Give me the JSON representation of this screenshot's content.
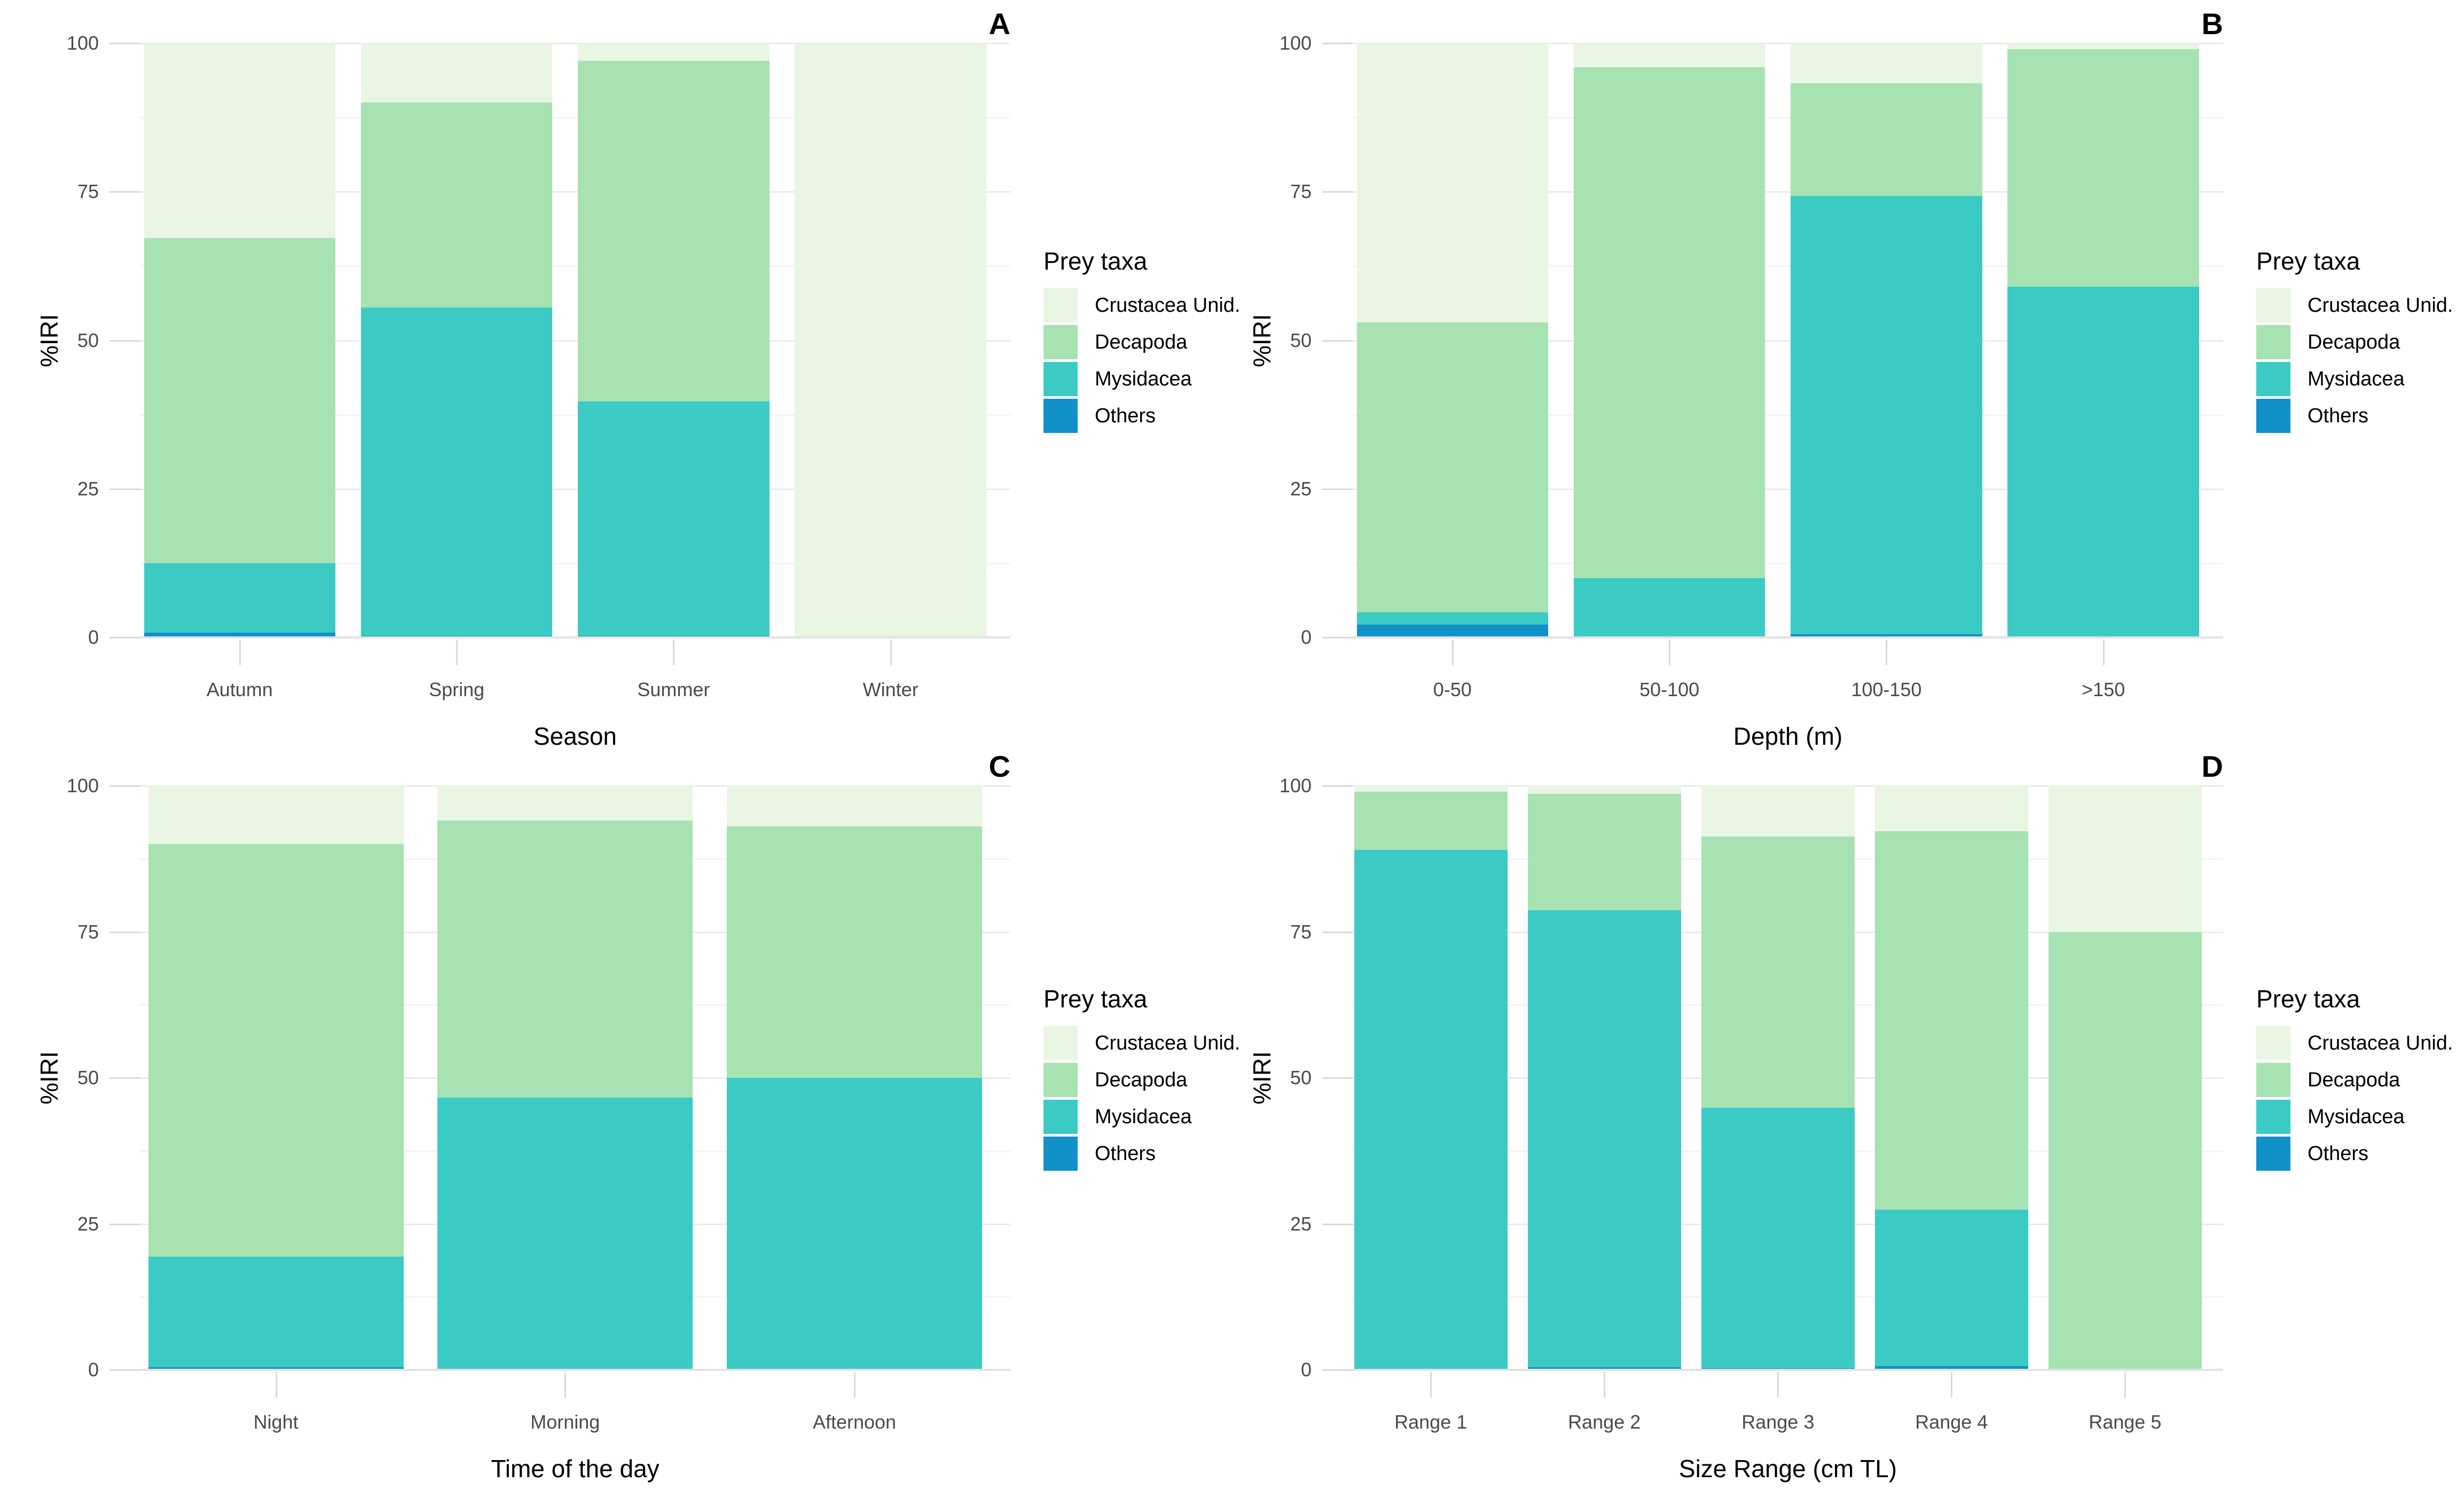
{
  "figure": {
    "background": "#FFFFFF",
    "y_axis": {
      "label": "%IRI",
      "ticks": [
        "0",
        "25",
        "50",
        "75",
        "100"
      ],
      "tick_values": [
        0,
        25,
        50,
        75,
        100
      ],
      "minor_tick_values": [
        12.5,
        37.5,
        62.5,
        87.5
      ],
      "ylim": [
        0,
        100
      ]
    },
    "legend": {
      "title": "Prey taxa",
      "position": "right-of-each-panel",
      "items": [
        {
          "label": "Crustacea Unid.",
          "color": "#E8F6E3"
        },
        {
          "label": "Decapoda",
          "color": "#A7E2B2"
        },
        {
          "label": "Mysidacea",
          "color": "#3BCBC4"
        },
        {
          "label": "Others",
          "color": "#1191C8"
        }
      ]
    },
    "colors": {
      "crustacea_unid": "#E8F6E3",
      "decapoda": "#A7E2B2",
      "mysidacea": "#3BCBC4",
      "others": "#1191C8",
      "grid_major": "#EBEBEB",
      "grid_minor": "#F4F4F4",
      "axis_line": "#E2E2E2",
      "tick_mark": "#D9D9D9",
      "tick_text": "#4A4A4A"
    }
  },
  "chart_data": [
    {
      "type": "bar",
      "stacked": true,
      "panel_letter": "A",
      "xlabel": "Season",
      "ylabel": "%IRI",
      "ylim": [
        0,
        100
      ],
      "yticks": [
        0,
        25,
        50,
        75,
        100
      ],
      "grid": "major+minor stubs",
      "categories": [
        "Autumn",
        "Spring",
        "Summer",
        "Winter"
      ],
      "stack_order": "bottom_to_top",
      "series": [
        {
          "name": "Others",
          "color": "#1191C8",
          "values": [
            0.8,
            0.3,
            0.3,
            0
          ]
        },
        {
          "name": "Mysidacea",
          "color": "#3BCBC4",
          "values": [
            11.7,
            55.2,
            39.4,
            0
          ]
        },
        {
          "name": "Decapoda",
          "color": "#A7E2B2",
          "values": [
            54.7,
            34.5,
            57.3,
            0
          ]
        },
        {
          "name": "Crustacea Unid.",
          "color": "#E8F6E3",
          "values": [
            32.8,
            10.0,
            3.0,
            100
          ]
        }
      ],
      "legend": {
        "title": "Prey taxa",
        "position": "right",
        "items_top_to_bottom": [
          "Crustacea Unid.",
          "Decapoda",
          "Mysidacea",
          "Others"
        ]
      }
    },
    {
      "type": "bar",
      "stacked": true,
      "panel_letter": "B",
      "xlabel": "Depth (m)",
      "ylabel": "%IRI",
      "ylim": [
        0,
        100
      ],
      "yticks": [
        0,
        25,
        50,
        75,
        100
      ],
      "grid": "major+minor stubs",
      "categories": [
        "0-50",
        "50-100",
        "100-150",
        ">150"
      ],
      "stack_order": "bottom_to_top",
      "series": [
        {
          "name": "Others",
          "color": "#1191C8",
          "values": [
            2.2,
            0,
            0.5,
            0
          ]
        },
        {
          "name": "Mysidacea",
          "color": "#3BCBC4",
          "values": [
            2.0,
            10.0,
            73.8,
            59.0
          ]
        },
        {
          "name": "Decapoda",
          "color": "#A7E2B2",
          "values": [
            48.8,
            86.0,
            19.0,
            40.0
          ]
        },
        {
          "name": "Crustacea Unid.",
          "color": "#E8F6E3",
          "values": [
            47.0,
            4.0,
            6.7,
            1.0
          ]
        }
      ],
      "legend": {
        "title": "Prey taxa",
        "position": "right",
        "items_top_to_bottom": [
          "Crustacea Unid.",
          "Decapoda",
          "Mysidacea",
          "Others"
        ]
      }
    },
    {
      "type": "bar",
      "stacked": true,
      "panel_letter": "C",
      "xlabel": "Time of the day",
      "ylabel": "%IRI",
      "ylim": [
        0,
        100
      ],
      "yticks": [
        0,
        25,
        50,
        75,
        100
      ],
      "grid": "major+minor stubs",
      "categories": [
        "Night",
        "Morning",
        "Afternoon"
      ],
      "stack_order": "bottom_to_top",
      "series": [
        {
          "name": "Others",
          "color": "#1191C8",
          "values": [
            0.5,
            0.2,
            0.2
          ]
        },
        {
          "name": "Mysidacea",
          "color": "#3BCBC4",
          "values": [
            18.9,
            46.4,
            49.8
          ]
        },
        {
          "name": "Decapoda",
          "color": "#A7E2B2",
          "values": [
            70.6,
            47.5,
            43.1
          ]
        },
        {
          "name": "Crustacea Unid.",
          "color": "#E8F6E3",
          "values": [
            10.0,
            5.9,
            6.9
          ]
        }
      ],
      "legend": {
        "title": "Prey taxa",
        "position": "right",
        "items_top_to_bottom": [
          "Crustacea Unid.",
          "Decapoda",
          "Mysidacea",
          "Others"
        ]
      }
    },
    {
      "type": "bar",
      "stacked": true,
      "panel_letter": "D",
      "xlabel": "Size Range (cm TL)",
      "ylabel": "%IRI",
      "ylim": [
        0,
        100
      ],
      "yticks": [
        0,
        25,
        50,
        75,
        100
      ],
      "grid": "major+minor stubs",
      "categories": [
        "Range 1",
        "Range 2",
        "Range 3",
        "Range 4",
        "Range 5"
      ],
      "stack_order": "bottom_to_top",
      "series": [
        {
          "name": "Others",
          "color": "#1191C8",
          "values": [
            0,
            0.5,
            0.3,
            0.6,
            0
          ]
        },
        {
          "name": "Mysidacea",
          "color": "#3BCBC4",
          "values": [
            89.0,
            78.2,
            44.6,
            26.8,
            0
          ]
        },
        {
          "name": "Decapoda",
          "color": "#A7E2B2",
          "values": [
            10.0,
            19.9,
            46.4,
            64.8,
            75.0
          ]
        },
        {
          "name": "Crustacea Unid.",
          "color": "#E8F6E3",
          "values": [
            1.0,
            1.4,
            8.7,
            7.8,
            25.0
          ]
        }
      ],
      "legend": {
        "title": "Prey taxa",
        "position": "right",
        "items_top_to_bottom": [
          "Crustacea Unid.",
          "Decapoda",
          "Mysidacea",
          "Others"
        ]
      }
    }
  ]
}
